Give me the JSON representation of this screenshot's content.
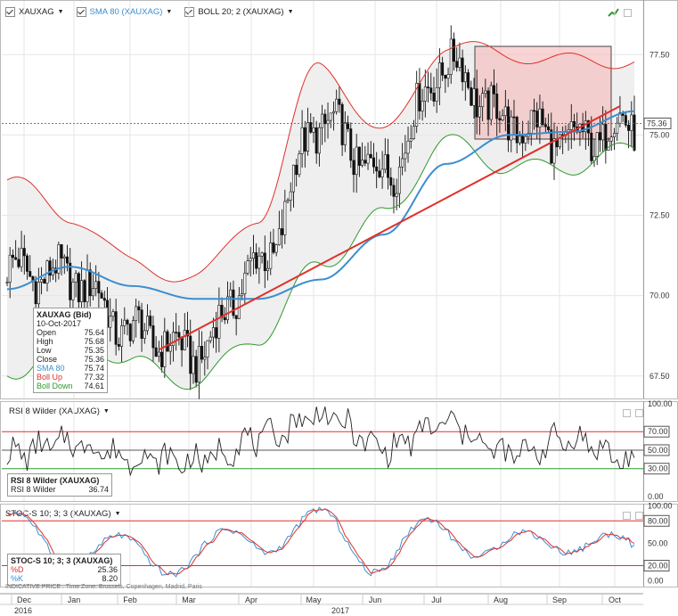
{
  "toolbar": {
    "instrument": "XAUXAG",
    "sma": "SMA 80 (XAUXAG)",
    "boll": "BOLL 20; 2 (XAUXAG)"
  },
  "main": {
    "y_ticks": [
      "77.50",
      "75.00",
      "72.50",
      "70.00",
      "67.50"
    ],
    "last_price": "75.36",
    "legend": {
      "title": "XAUXAG (Bid)",
      "date": "10-Oct-2017",
      "rows": [
        {
          "label": "Open",
          "value": "75.64",
          "color": "#222"
        },
        {
          "label": "High",
          "value": "75.68",
          "color": "#222"
        },
        {
          "label": "Low",
          "value": "75.35",
          "color": "#222"
        },
        {
          "label": "Close",
          "value": "75.36",
          "color": "#222"
        },
        {
          "label": "SMA 80",
          "value": "75.74",
          "color": "#3b8ed0"
        },
        {
          "label": "Boll Up",
          "value": "77.32",
          "color": "#e0302b"
        },
        {
          "label": "Boll Down",
          "value": "74.61",
          "color": "#2e9a2e"
        }
      ]
    }
  },
  "rsi": {
    "title": "RSI 8 Wilder (XAUXAG)",
    "y_ticks": [
      "100.00",
      "70.00",
      "50.00",
      "30.00",
      "0.00"
    ],
    "legend_title": "RSI 8 Wilder (XAUXAG)",
    "legend_label": "RSI 8 Wilder",
    "legend_value": "36.74"
  },
  "stoc": {
    "title": "STOC-S 10; 3; 3 (XAUXAG)",
    "y_ticks": [
      "100.00",
      "80.00",
      "50.00",
      "20.00",
      "0.00"
    ],
    "legend_title": "STOC-S 10; 3; 3 (XAUXAG)",
    "pd_label": "%D",
    "pd_value": "25.36",
    "pk_label": "%K",
    "pk_value": "8.20"
  },
  "footer_note": "INDICATIVE PRICE . Time Zone: Brussels, Copenhagen, Madrid, Paris",
  "x_axis": {
    "months": [
      "Dec",
      "Jan",
      "Feb",
      "Mar",
      "Apr",
      "May",
      "Jun",
      "Jul",
      "Aug",
      "Sep",
      "Oct"
    ],
    "years": [
      "2016",
      "2017"
    ]
  },
  "colors": {
    "price": "#111111",
    "sma": "#3b8ed0",
    "boll_up": "#e0302b",
    "boll_down": "#2e9a2e",
    "trendline": "#e0302b",
    "band_fill": "#efefef",
    "rect_fill": "#f4b8b8"
  },
  "chart_data": [
    {
      "type": "line",
      "title": "XAUXAG",
      "x": [
        "Dec",
        "Jan",
        "Feb",
        "Mar",
        "Apr",
        "May",
        "Jun",
        "Jul",
        "Aug",
        "Sep",
        "Oct"
      ],
      "series": [
        {
          "name": "XAUXAG",
          "values": [
            70.8,
            70.6,
            68.9,
            68.2,
            70.9,
            75.4,
            73.8,
            77.2,
            75.4,
            74.8,
            75.36
          ]
        },
        {
          "name": "SMA 80",
          "values": [
            70.2,
            70.9,
            70.3,
            69.9,
            69.9,
            70.5,
            71.9,
            74.1,
            75.0,
            75.1,
            75.74
          ]
        },
        {
          "name": "Boll Up",
          "values": [
            73.6,
            72.5,
            71.0,
            70.5,
            72.5,
            77.2,
            75.0,
            77.8,
            77.5,
            77.3,
            77.32
          ]
        },
        {
          "name": "Boll Down",
          "values": [
            67.5,
            68.9,
            67.9,
            67.3,
            68.7,
            71.0,
            72.5,
            74.8,
            74.0,
            74.0,
            74.61
          ]
        }
      ],
      "ylim": [
        66.8,
        79.2
      ],
      "grid": true
    },
    {
      "type": "line",
      "title": "RSI 8 Wilder (XAUXAG)",
      "x": [
        "Dec",
        "Jan",
        "Feb",
        "Mar",
        "Apr",
        "May",
        "Jun",
        "Jul",
        "Aug",
        "Sep",
        "Oct"
      ],
      "series": [
        {
          "name": "RSI 8 Wilder",
          "values": [
            45,
            58,
            42,
            38,
            62,
            88,
            52,
            78,
            45,
            62,
            36.74
          ]
        }
      ],
      "ylim": [
        0,
        100
      ]
    },
    {
      "type": "line",
      "title": "STOC-S 10; 3; 3 (XAUXAG)",
      "x": [
        "Dec",
        "Jan",
        "Feb",
        "Mar",
        "Apr",
        "May",
        "Jun",
        "Jul",
        "Aug",
        "Sep",
        "Oct"
      ],
      "series": [
        {
          "name": "%D",
          "values": [
            88,
            38,
            22,
            12,
            70,
            95,
            15,
            90,
            30,
            70,
            25.36
          ]
        },
        {
          "name": "%K",
          "values": [
            92,
            30,
            18,
            8,
            75,
            97,
            10,
            93,
            25,
            78,
            8.2
          ]
        }
      ],
      "ylim": [
        0,
        100
      ]
    }
  ]
}
